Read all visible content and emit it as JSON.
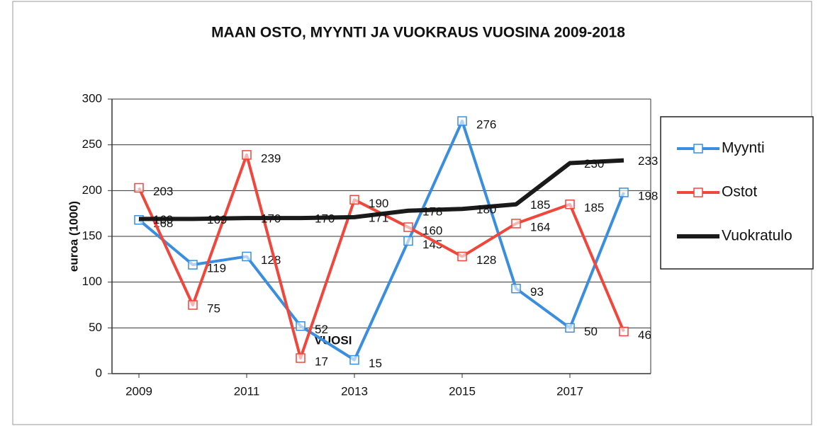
{
  "chart_data": {
    "type": "line",
    "title": "MAAN OSTO, MYYNTI JA VUOKRAUS VUOSINA 2009-2018",
    "x_label": "VUOSI",
    "y_label": "euroa (1000)",
    "x": [
      2009,
      2010,
      2011,
      2012,
      2013,
      2014,
      2015,
      2016,
      2017,
      2018
    ],
    "xlim": [
      2008.5,
      2018.5
    ],
    "xticks": [
      2009,
      2011,
      2013,
      2015,
      2017
    ],
    "ylim": [
      0,
      300
    ],
    "yticks": [
      0,
      50,
      100,
      150,
      200,
      250,
      300
    ],
    "grid": true,
    "legend": "right",
    "series": [
      {
        "name": "Myynti",
        "color": "#3a8ee0",
        "values": [
          168,
          119,
          128,
          52,
          15,
          145,
          276,
          93,
          50,
          198
        ]
      },
      {
        "name": "Ostot",
        "color": "#f0463c",
        "values": [
          203,
          75,
          239,
          17,
          190,
          160,
          128,
          164,
          185,
          46
        ]
      },
      {
        "name": "Vuokratulo",
        "color": "#1a1a1a",
        "values": [
          169,
          169,
          170,
          170,
          171,
          178,
          180,
          185,
          230,
          233
        ]
      }
    ]
  }
}
